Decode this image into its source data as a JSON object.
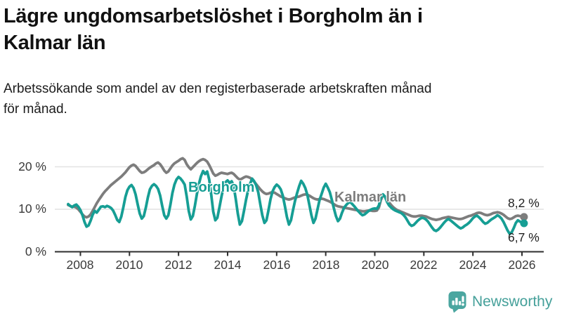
{
  "header": {
    "title_line1": "Lägre ungdomsarbetslöshet i Borgholm än i",
    "title_line2": "Kalmar län",
    "subtitle_line1": "Arbetssökande som andel av den registerbaserade arbetskraften månad",
    "subtitle_line2": "för månad."
  },
  "chart_data": {
    "type": "line",
    "unit": "percent of registered labour force",
    "frequency": "monthly",
    "x_start": "2007-07",
    "x_end": "2026-02",
    "x_tick_labels": [
      "2008",
      "2010",
      "2012",
      "2014",
      "2016",
      "2018",
      "2020",
      "2022",
      "2024",
      "2026"
    ],
    "y_ticks": [
      0,
      10,
      20
    ],
    "y_tick_labels": [
      "0 %",
      "10 %",
      "20 %"
    ],
    "ylim": [
      0,
      24
    ],
    "grid": "horizontal",
    "axis_color": "#2E2E2E",
    "gridline_color": "#E2E2E2",
    "series": [
      {
        "id": "kalmar-lan",
        "name": "Kalmar län",
        "color": "#7D7D7D",
        "end_label": "8,2 %",
        "values": [
          11.0,
          10.8,
          10.6,
          10.6,
          10.4,
          10.0,
          9.4,
          8.8,
          8.3,
          8.1,
          8.3,
          8.8,
          9.6,
          10.5,
          11.4,
          12.2,
          12.9,
          13.6,
          14.2,
          14.7,
          15.2,
          15.7,
          16.1,
          16.5,
          16.9,
          17.3,
          17.7,
          18.2,
          18.7,
          19.3,
          19.9,
          20.3,
          20.5,
          20.2,
          19.6,
          19.0,
          18.6,
          18.7,
          19.0,
          19.4,
          19.8,
          20.1,
          20.4,
          20.8,
          21.0,
          20.6,
          19.9,
          19.1,
          18.6,
          18.9,
          19.6,
          20.3,
          20.8,
          21.1,
          21.4,
          21.8,
          22.0,
          21.6,
          20.6,
          19.9,
          19.4,
          19.9,
          20.4,
          20.9,
          21.3,
          21.6,
          21.8,
          21.6,
          21.2,
          20.4,
          19.4,
          18.4,
          17.9,
          18.1,
          18.4,
          18.6,
          18.5,
          18.4,
          18.3,
          18.5,
          18.6,
          18.3,
          17.8,
          17.3,
          17.0,
          17.2,
          17.5,
          17.7,
          17.6,
          17.4,
          17.0,
          16.5,
          15.9,
          15.3,
          14.7,
          14.2,
          13.8,
          13.6,
          13.7,
          13.9,
          14.0,
          13.9,
          13.6,
          13.3,
          13.0,
          12.8,
          12.6,
          12.4,
          12.3,
          12.4,
          12.6,
          12.8,
          12.9,
          13.0,
          13.2,
          13.4,
          13.5,
          13.4,
          13.2,
          12.9,
          12.6,
          12.4,
          12.3,
          12.4,
          12.5,
          12.4,
          12.2,
          12.0,
          11.8,
          11.5,
          11.2,
          10.9,
          10.7,
          10.6,
          10.5,
          10.4,
          10.3,
          10.2,
          10.1,
          10.0,
          9.9,
          9.8,
          9.7,
          9.6,
          9.5,
          9.5,
          9.6,
          9.7,
          9.7,
          9.6,
          9.6,
          9.7,
          10.4,
          12.2,
          13.3,
          13.0,
          12.2,
          11.6,
          11.0,
          10.5,
          10.1,
          9.8,
          9.6,
          9.4,
          9.2,
          9.0,
          8.8,
          8.6,
          8.4,
          8.3,
          8.3,
          8.4,
          8.5,
          8.5,
          8.4,
          8.3,
          8.1,
          7.9,
          7.7,
          7.6,
          7.5,
          7.6,
          7.7,
          7.9,
          8.0,
          8.1,
          8.2,
          8.1,
          8.0,
          7.9,
          7.8,
          7.7,
          7.7,
          7.8,
          8.0,
          8.2,
          8.4,
          8.5,
          8.7,
          8.9,
          9.1,
          9.2,
          9.1,
          8.9,
          8.7,
          8.6,
          8.7,
          8.9,
          9.1,
          9.2,
          9.3,
          9.2,
          9.0,
          8.7,
          8.3,
          7.9,
          7.7,
          7.8,
          8.1,
          8.4,
          8.5,
          8.4,
          8.3,
          8.2
        ]
      },
      {
        "id": "borgholm",
        "name": "Borgholm",
        "color": "#169E94",
        "end_label": "6,7 %",
        "values": [
          11.2,
          10.8,
          10.5,
          10.9,
          11.1,
          10.6,
          9.8,
          8.6,
          7.0,
          5.9,
          6.2,
          7.3,
          8.7,
          9.6,
          9.2,
          9.9,
          10.6,
          10.7,
          10.5,
          10.8,
          10.6,
          10.3,
          9.7,
          8.7,
          7.5,
          7.0,
          8.3,
          10.5,
          12.9,
          14.5,
          15.3,
          15.7,
          15.0,
          13.5,
          11.2,
          9.0,
          7.8,
          8.4,
          10.4,
          12.8,
          14.7,
          15.5,
          15.9,
          15.5,
          14.8,
          13.2,
          10.8,
          8.6,
          7.8,
          8.6,
          11.0,
          13.8,
          15.8,
          17.0,
          17.6,
          17.2,
          16.6,
          15.8,
          13.0,
          9.6,
          7.6,
          8.4,
          10.8,
          13.6,
          16.0,
          17.8,
          19.0,
          18.3,
          18.9,
          17.0,
          13.4,
          9.4,
          7.4,
          8.0,
          10.4,
          13.0,
          15.2,
          16.4,
          16.8,
          16.2,
          16.6,
          15.4,
          12.4,
          9.0,
          6.4,
          7.2,
          9.6,
          12.2,
          14.4,
          16.0,
          17.2,
          16.6,
          15.6,
          14.0,
          11.2,
          8.6,
          6.8,
          7.4,
          9.8,
          12.4,
          14.2,
          15.2,
          15.8,
          15.4,
          14.7,
          13.2,
          10.8,
          8.2,
          6.4,
          7.4,
          9.8,
          12.0,
          13.8,
          15.4,
          16.7,
          16.0,
          15.0,
          13.4,
          11.0,
          8.6,
          6.8,
          7.8,
          10.0,
          12.2,
          13.6,
          15.1,
          16.0,
          15.1,
          14.0,
          12.2,
          10.2,
          8.4,
          7.2,
          7.8,
          9.2,
          10.4,
          11.0,
          11.5,
          11.7,
          11.2,
          10.7,
          10.1,
          9.5,
          9.0,
          8.6,
          8.8,
          9.2,
          9.6,
          9.9,
          10.1,
          10.2,
          10.1,
          10.9,
          12.7,
          13.5,
          13.0,
          11.7,
          10.9,
          10.4,
          10.0,
          9.7,
          9.5,
          9.3,
          9.1,
          8.7,
          8.1,
          7.3,
          6.5,
          6.1,
          6.3,
          6.8,
          7.3,
          7.7,
          8.0,
          7.9,
          7.6,
          7.1,
          6.4,
          5.7,
          5.1,
          4.9,
          5.2,
          5.7,
          6.3,
          6.9,
          7.4,
          7.7,
          7.4,
          7.0,
          6.6,
          6.2,
          5.8,
          5.5,
          5.7,
          6.1,
          6.4,
          6.8,
          7.3,
          7.9,
          8.3,
          8.5,
          8.1,
          7.6,
          7.0,
          6.6,
          6.8,
          7.2,
          7.6,
          7.9,
          8.2,
          8.6,
          8.3,
          7.8,
          7.0,
          6.0,
          5.0,
          4.2,
          4.6,
          5.6,
          6.8,
          7.4,
          7.1,
          6.9,
          6.7
        ]
      }
    ]
  },
  "footer": {
    "brand": "Newsworthy",
    "brand_color": "#45A09A",
    "logo_icon": "bar-chart-speech-bubble-icon"
  }
}
